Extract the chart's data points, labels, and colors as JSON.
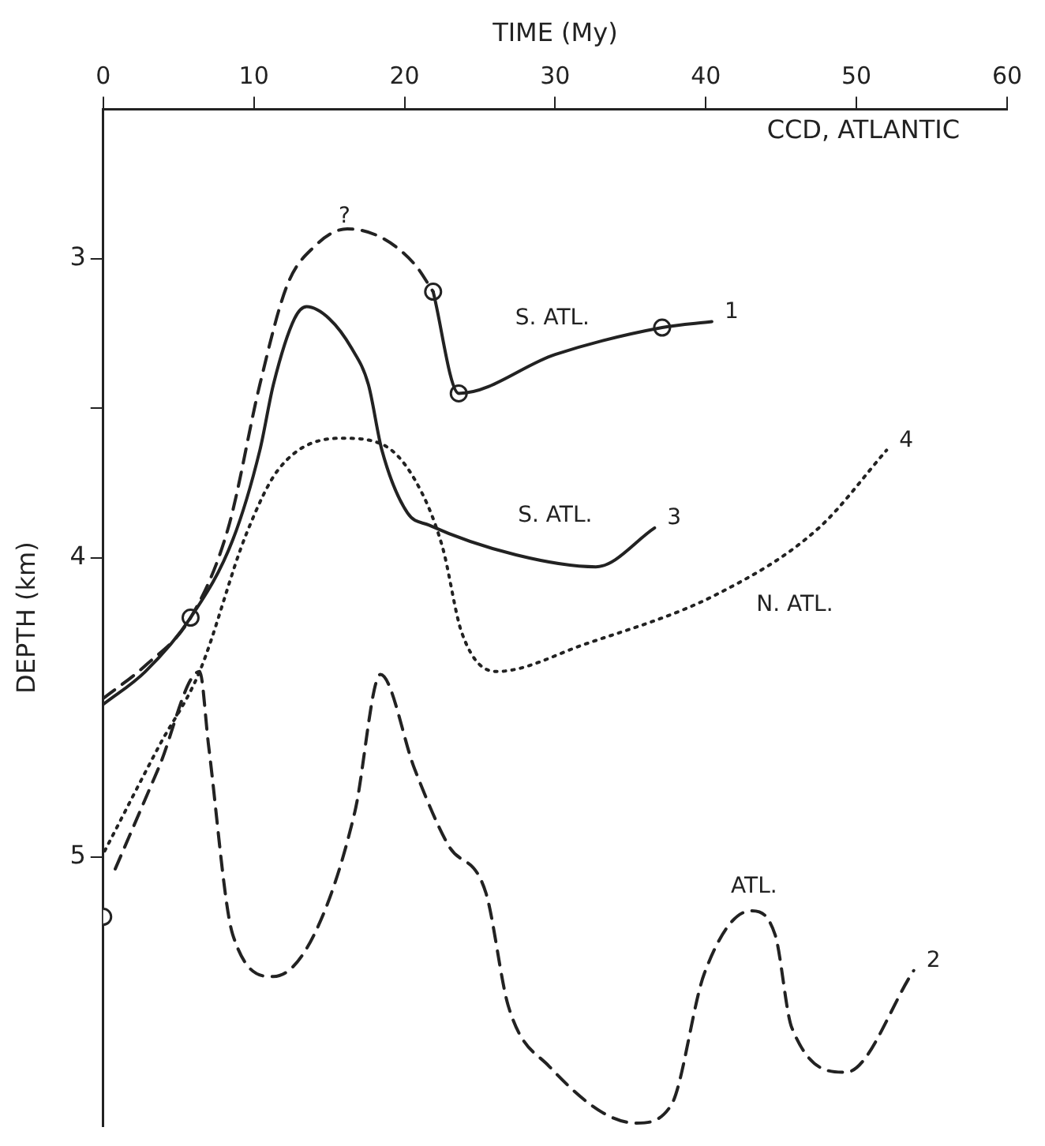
{
  "chart_data": {
    "type": "line",
    "title": "CCD, ATLANTIC",
    "xlabel": "TIME (My)",
    "ylabel": "DEPTH (km)",
    "xlim": [
      0,
      60
    ],
    "xticks": [
      0,
      10,
      20,
      30,
      40,
      50,
      60
    ],
    "ylim": [
      5.9,
      2.5
    ],
    "yticks": [
      3,
      {
        "value": 3.5,
        "label": null
      },
      4,
      5
    ],
    "legend": false,
    "series": [
      {
        "name": "1",
        "color": "#222222",
        "line_style": "solid",
        "marker": "none",
        "x": [
          21.9,
          23.6,
          30,
          37.1,
          40.4
        ],
        "values": [
          3.11,
          3.45,
          3.32,
          3.23,
          3.21
        ]
      },
      {
        "color": "#222222",
        "line_style": "dashed",
        "marker": "none",
        "x": [
          0,
          2.8,
          5.8,
          8.3,
          10.4,
          12.2,
          14,
          16.2,
          18.5,
          20.7,
          21.9
        ],
        "values": [
          4.47,
          4.36,
          4.2,
          3.9,
          3.42,
          3.09,
          2.96,
          2.9,
          2.93,
          3.02,
          3.11
        ]
      },
      {
        "name": "2",
        "color": "#222222",
        "line_style": "dashed",
        "marker": "none",
        "x": [
          0.8,
          3.7,
          6.4,
          7,
          8.6,
          11.3,
          14,
          16.7,
          18.4,
          20.7,
          22.9,
          25.4,
          26.9,
          29.6,
          35.4,
          37.7,
          39.9,
          43,
          44.6,
          45.7,
          49.3,
          53.8
        ],
        "values": [
          5.04,
          4.7,
          4.38,
          4.63,
          5.26,
          5.4,
          5.26,
          4.85,
          4.39,
          4.71,
          4.96,
          5.12,
          5.5,
          5.7,
          5.89,
          5.83,
          5.39,
          5.18,
          5.26,
          5.57,
          5.72,
          5.38
        ]
      },
      {
        "name": "3",
        "color": "#222222",
        "line_style": "solid",
        "marker": "none",
        "x": [
          0,
          2.8,
          5.8,
          8.6,
          10.4,
          11.3,
          12.7,
          13.5,
          15,
          16.5,
          17.6,
          18.5,
          20.2,
          21.6,
          27.4,
          32.7,
          36.6
        ],
        "values": [
          4.49,
          4.38,
          4.2,
          3.94,
          3.64,
          3.42,
          3.2,
          3.16,
          3.2,
          3.3,
          3.42,
          3.64,
          3.85,
          3.89,
          3.99,
          4.03,
          3.9
        ]
      },
      {
        "name": "4",
        "color": "#222222",
        "line_style": "dotted",
        "marker": "none",
        "x": [
          0.1,
          3.7,
          6.4,
          9.5,
          11.7,
          15.8,
          18.5,
          20.7,
          22.5,
          23.8,
          26.1,
          31.9,
          40.8,
          47.5,
          52
        ],
        "values": [
          4.98,
          4.63,
          4.38,
          3.92,
          3.7,
          3.6,
          3.62,
          3.74,
          3.96,
          4.25,
          4.38,
          4.29,
          4.12,
          3.9,
          3.64
        ]
      },
      {
        "type": "scatter",
        "color": "#222222",
        "marker": "circle",
        "x": [
          0,
          5.8,
          21.9,
          23.6,
          37.1
        ],
        "values": [
          5.2,
          4.2,
          3.11,
          3.45,
          3.23
        ]
      }
    ],
    "annotations": [
      "?",
      "S. ATL.",
      "S. ATL.",
      "N. ATL.",
      "ATL."
    ]
  }
}
